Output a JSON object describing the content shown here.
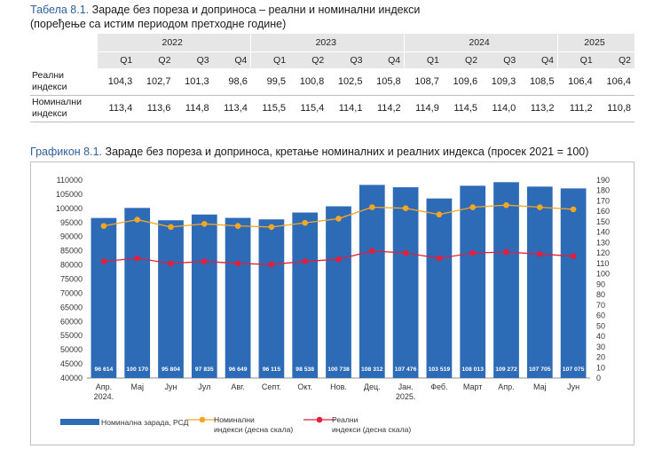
{
  "table": {
    "label": "Табела 8.1.",
    "title": "Зараде без пореза и доприноса – реални и номинални индекси",
    "subtitle": "(поређење са истим периодом претходне године)",
    "years": [
      "2022",
      "2023",
      "2024",
      "2025"
    ],
    "quarters": [
      "Q1",
      "Q2",
      "Q3",
      "Q4",
      "Q1",
      "Q2",
      "Q3",
      "Q4",
      "Q1",
      "Q2",
      "Q3",
      "Q4",
      "Q1",
      "Q2"
    ],
    "rows": [
      {
        "label_line1": "Реални",
        "label_line2": "индекси",
        "values": [
          "104,3",
          "102,7",
          "101,3",
          "98,6",
          "99,5",
          "100,8",
          "102,5",
          "105,8",
          "108,7",
          "109,6",
          "109,3",
          "108,5",
          "106,4",
          "106,4"
        ]
      },
      {
        "label_line1": "Номинални",
        "label_line2": "индекси",
        "values": [
          "113,4",
          "113,6",
          "114,8",
          "113,4",
          "115,5",
          "115,4",
          "114,1",
          "114,2",
          "114,9",
          "114,5",
          "114,0",
          "113,2",
          "111,2",
          "110,8"
        ]
      }
    ]
  },
  "chart_caption": {
    "label": "Графикон 8.1.",
    "title": "Зараде без пореза и доприноса, кретање номиналних и реалних индекса (просек 2021 = 100)"
  },
  "chart_data": {
    "type": "bar",
    "categories": [
      [
        "Апр.",
        "2024."
      ],
      [
        "Мај"
      ],
      [
        "Јун"
      ],
      [
        "Јул"
      ],
      [
        "Авг."
      ],
      [
        "Септ."
      ],
      [
        "Окт."
      ],
      [
        "Нов."
      ],
      [
        "Дец."
      ],
      [
        "Јан.",
        "2025."
      ],
      [
        "Феб."
      ],
      [
        "Март"
      ],
      [
        "Апр."
      ],
      [
        "Мај"
      ],
      [
        "Јун"
      ]
    ],
    "y_left": {
      "min": 40000,
      "max": 110000,
      "step": 5000,
      "ticks": [
        "40000",
        "45000",
        "50000",
        "55000",
        "60000",
        "65000",
        "70000",
        "75000",
        "80000",
        "85000",
        "90000",
        "95000",
        "100000",
        "105000",
        "110000"
      ]
    },
    "y_right": {
      "min": 0,
      "max": 190,
      "step": 10,
      "ticks": [
        "0",
        "10",
        "20",
        "30",
        "40",
        "50",
        "60",
        "70",
        "80",
        "90",
        "100",
        "110",
        "120",
        "130",
        "140",
        "150",
        "160",
        "170",
        "180",
        "190"
      ]
    },
    "series": [
      {
        "name": "Номинална зарада, РСД",
        "axis": "left",
        "kind": "bar",
        "color": "#2e6bb7",
        "values": [
          96614,
          100170,
          95804,
          97835,
          96649,
          96115,
          98538,
          100738,
          108312,
          107476,
          103519,
          108013,
          109272,
          107705,
          107075
        ],
        "labels": [
          "96 614",
          "100 170",
          "95 804",
          "97 835",
          "96 649",
          "96 115",
          "98 538",
          "100 738",
          "108 312",
          "107 476",
          "103 519",
          "108 013",
          "109 272",
          "107 705",
          "107 075"
        ]
      },
      {
        "name_line1": "Номинални",
        "name_line2": "индекси (десна скала)",
        "axis": "right",
        "kind": "line",
        "color": "#f5a623",
        "values": [
          146,
          152,
          145,
          148,
          146,
          145,
          149,
          153,
          164,
          163,
          157,
          164,
          166,
          164,
          162
        ]
      },
      {
        "name_line1": "Реални",
        "name_line2": "индекси (десна скала)",
        "axis": "right",
        "kind": "line",
        "color": "#e0203c",
        "values": [
          112,
          115,
          110,
          112,
          110,
          109,
          112,
          114,
          122,
          120,
          115,
          120,
          121,
          119,
          117
        ]
      }
    ]
  }
}
